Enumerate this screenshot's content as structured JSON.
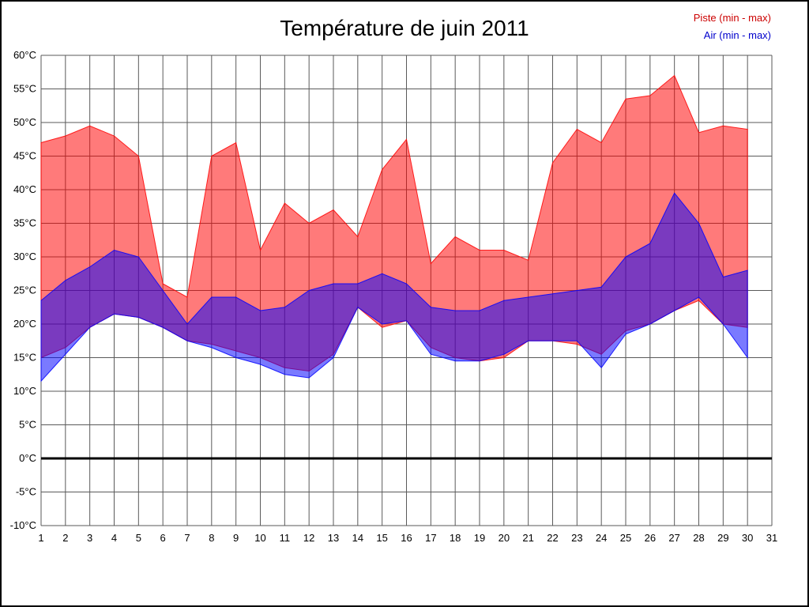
{
  "title": "Température de juin 2011",
  "legend": {
    "piste": "Piste (min - max)",
    "air": "Air (min - max)",
    "piste_color": "#cc0000",
    "air_color": "#0000cc"
  },
  "chart_data": {
    "type": "area",
    "title": "Température de juin 2011",
    "x": [
      1,
      2,
      3,
      4,
      5,
      6,
      7,
      8,
      9,
      10,
      11,
      12,
      13,
      14,
      15,
      16,
      17,
      18,
      19,
      20,
      21,
      22,
      23,
      24,
      25,
      26,
      27,
      28,
      29,
      30
    ],
    "x_tick_labels": [
      "1",
      "2",
      "3",
      "4",
      "5",
      "6",
      "7",
      "8",
      "9",
      "10",
      "11",
      "12",
      "13",
      "14",
      "15",
      "16",
      "17",
      "18",
      "19",
      "20",
      "21",
      "22",
      "23",
      "24",
      "25",
      "26",
      "27",
      "28",
      "29",
      "30",
      "31"
    ],
    "y_tick_labels": [
      "60°C",
      "55°C",
      "50°C",
      "45°C",
      "40°C",
      "35°C",
      "30°C",
      "25°C",
      "20°C",
      "15°C",
      "10°C",
      "5°C",
      "0°C",
      "-5°C",
      "-10°C"
    ],
    "ylim": [
      -10,
      60
    ],
    "y_step": 5,
    "x_axis_days": 31,
    "grid": true,
    "zero_line": true,
    "legend_position": "top-right",
    "series": [
      {
        "name": "Piste (min - max)",
        "fill": "rgba(255,0,0,0.52)",
        "edge": "rgba(255,0,0,0.85)",
        "max": [
          47,
          48,
          49.5,
          48,
          45,
          26,
          24,
          45,
          47,
          31,
          38,
          35,
          37,
          33,
          43,
          47.5,
          29,
          33,
          31,
          31,
          29.5,
          44,
          49,
          47,
          53.5,
          54,
          57,
          48.5,
          49.5,
          49
        ],
        "min": [
          15,
          16.5,
          19.5,
          21.5,
          21,
          19.5,
          17.5,
          17,
          16,
          15,
          13.5,
          13,
          15.5,
          22.5,
          19.5,
          20.5,
          16.5,
          15,
          14.5,
          15,
          17.5,
          17.5,
          17,
          15.5,
          19,
          20,
          22,
          23.5,
          20,
          19.5
        ]
      },
      {
        "name": "Air (min - max)",
        "fill": "rgba(0,0,255,0.52)",
        "edge": "rgba(0,0,255,0.85)",
        "max": [
          23.5,
          26.5,
          28.5,
          31,
          30,
          25,
          20,
          24,
          24,
          22,
          22.5,
          25,
          26,
          26,
          27.5,
          26,
          22.5,
          22,
          22,
          23.5,
          24,
          24.5,
          25,
          25.5,
          30,
          32,
          39.5,
          35,
          27,
          28
        ],
        "min": [
          11.5,
          15.5,
          19.5,
          21.5,
          21,
          19.5,
          17.5,
          16.5,
          15,
          14,
          12.5,
          12,
          15,
          22.5,
          20,
          20.5,
          15.5,
          14.5,
          14.5,
          15.5,
          17.5,
          17.5,
          17.5,
          13.5,
          18.5,
          20,
          22,
          24,
          20,
          15
        ]
      }
    ]
  }
}
